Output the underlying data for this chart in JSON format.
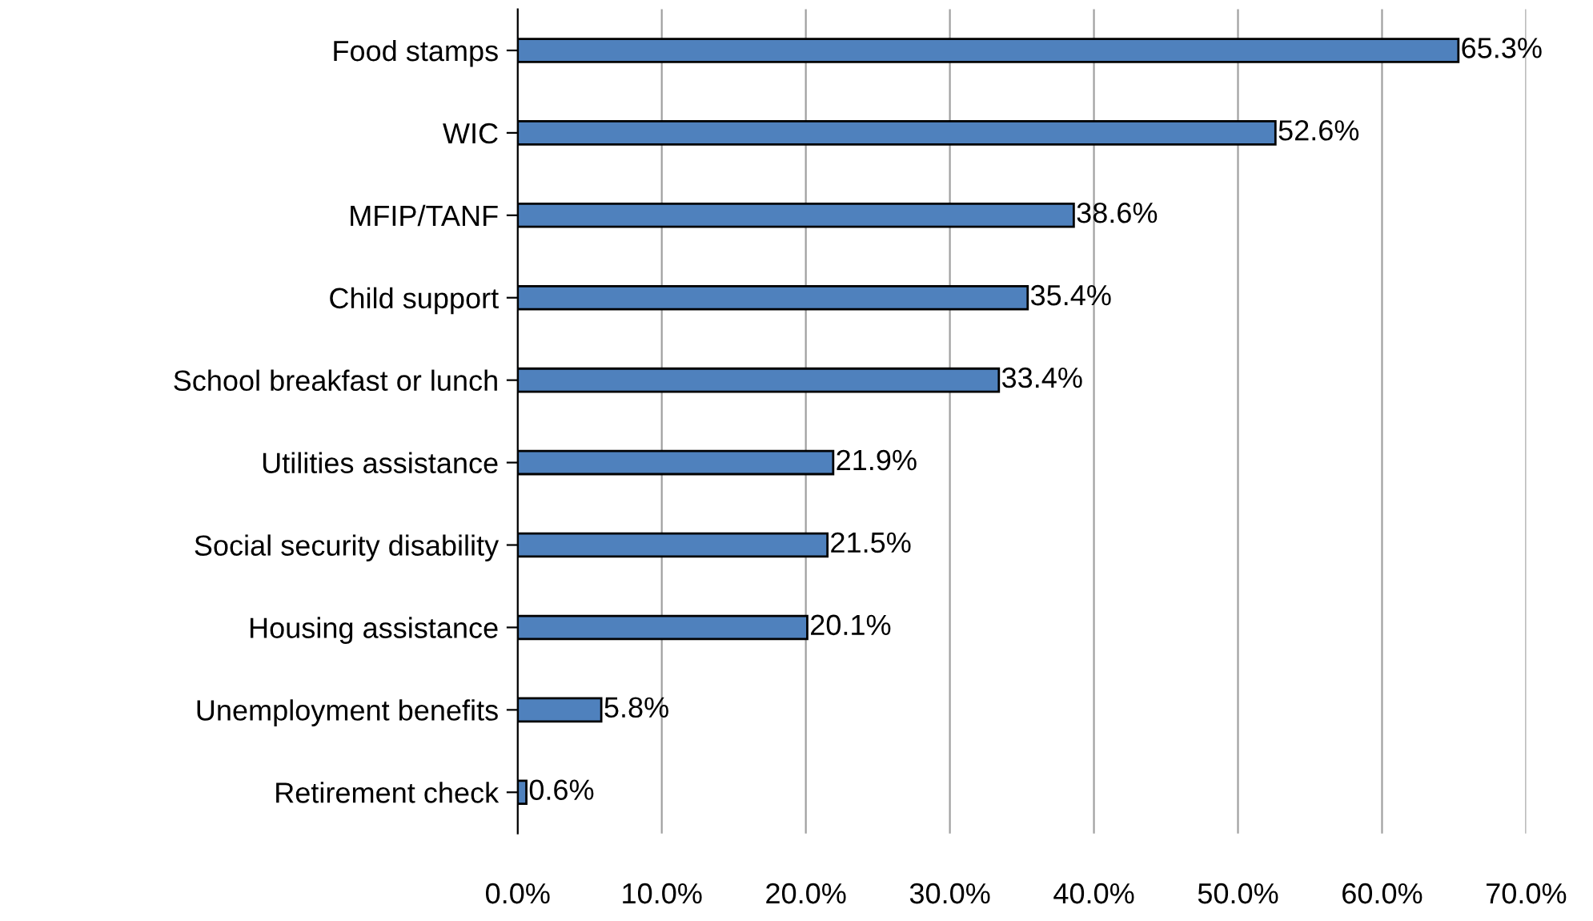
{
  "chart_data": {
    "type": "bar",
    "orientation": "horizontal",
    "categories": [
      "Food stamps",
      "WIC",
      "MFIP/TANF",
      "Child support",
      "School breakfast or lunch",
      "Utilities assistance",
      "Social security disability",
      "Housing assistance",
      "Unemployment benefits",
      "Retirement check"
    ],
    "values": [
      65.3,
      52.6,
      38.6,
      35.4,
      33.4,
      21.9,
      21.5,
      20.1,
      5.8,
      0.6
    ],
    "value_labels": [
      "65.3%",
      "52.6%",
      "38.6%",
      "35.4%",
      "33.4%",
      "21.9%",
      "21.5%",
      "20.1%",
      "5.8%",
      "0.6%"
    ],
    "color": "#4f81bd",
    "xlim": [
      0,
      70
    ],
    "xticks": [
      {
        "value": 0,
        "label": "0.0%"
      },
      {
        "value": 10,
        "label": "10.0%"
      },
      {
        "value": 20,
        "label": "20.0%"
      },
      {
        "value": 30,
        "label": "30.0%"
      },
      {
        "value": 40,
        "label": "40.0%"
      },
      {
        "value": 50,
        "label": "50.0%"
      },
      {
        "value": 60,
        "label": "60.0%"
      },
      {
        "value": 70,
        "label": "70.0%"
      }
    ],
    "grid": "x",
    "legend": false
  }
}
